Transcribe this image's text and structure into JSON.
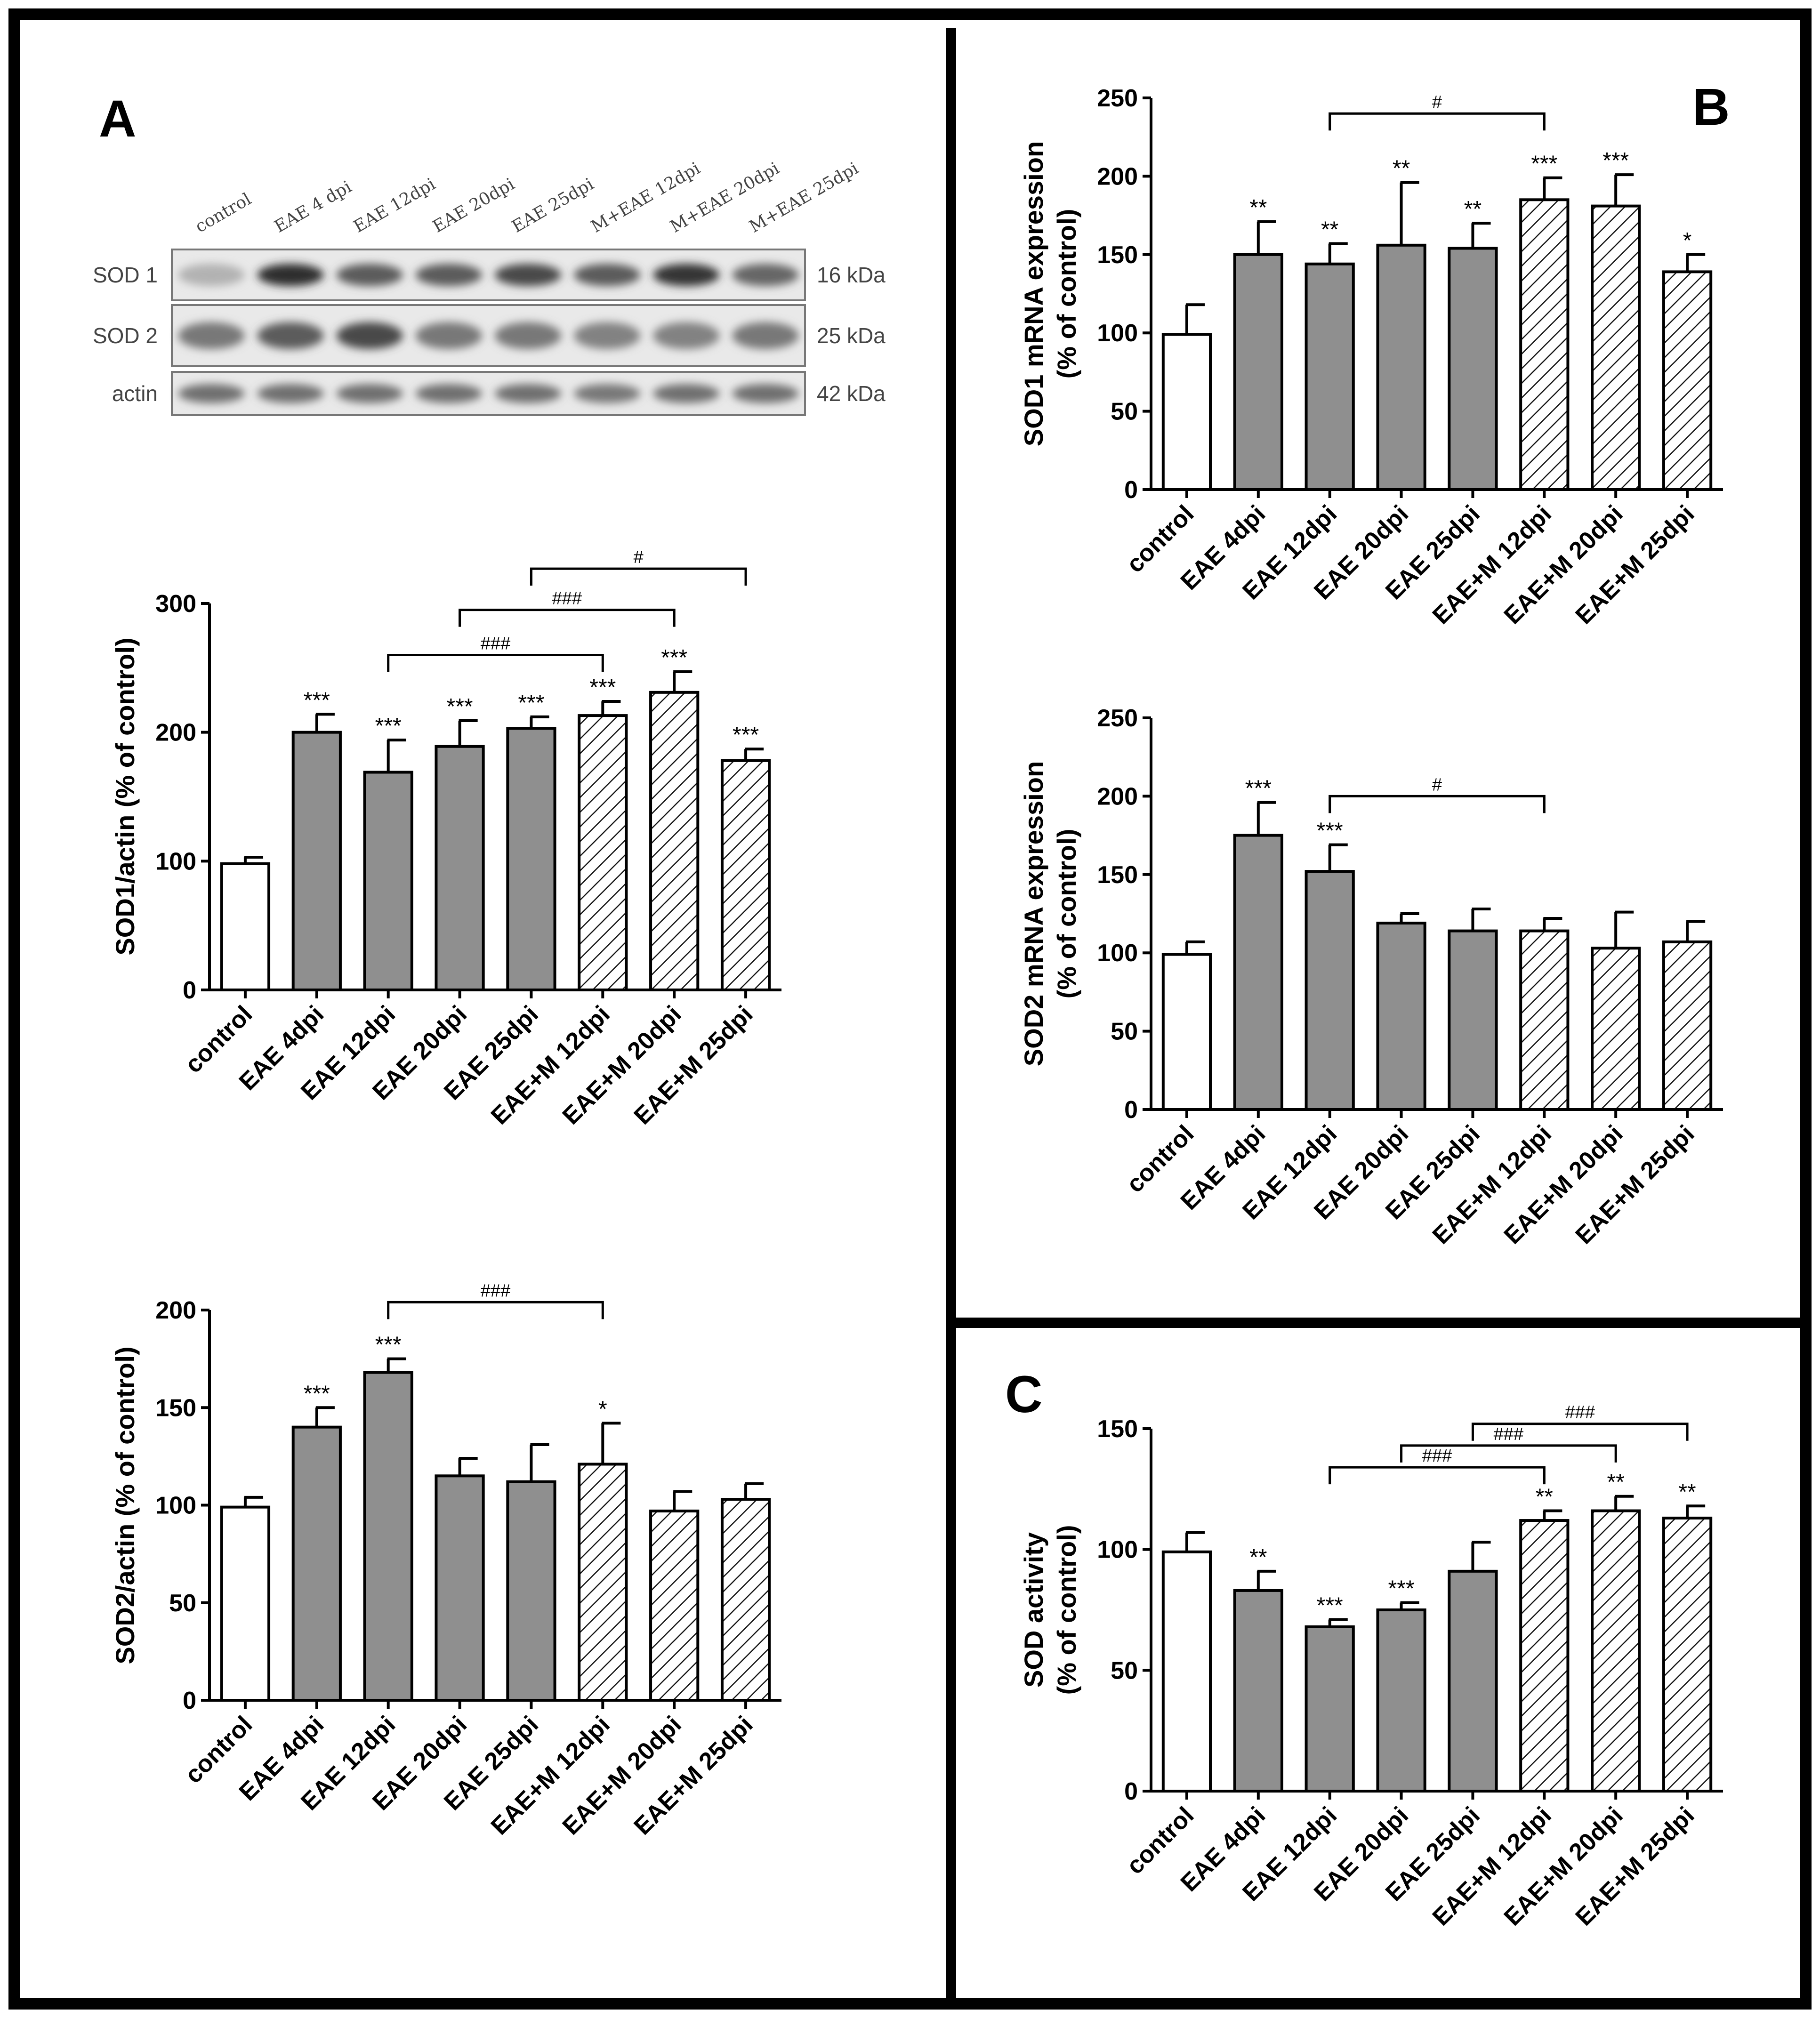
{
  "panels": {
    "A": "A",
    "B": "B",
    "C": "C"
  },
  "blot": {
    "lanes": [
      "control",
      "EAE 4 dpi",
      "EAE 12dpi",
      "EAE 20dpi",
      "EAE 25dpi",
      "M+EAE 12dpi",
      "M+EAE 20dpi",
      "M+EAE 25dpi"
    ],
    "rows": [
      {
        "name": "SOD 1",
        "size": "16 kDa",
        "intensity": [
          0.25,
          0.95,
          0.7,
          0.7,
          0.8,
          0.7,
          0.9,
          0.65
        ]
      },
      {
        "name": "SOD 2",
        "size": "25 kDa",
        "intensity": [
          0.55,
          0.7,
          0.8,
          0.55,
          0.55,
          0.5,
          0.5,
          0.55
        ]
      },
      {
        "name": "actin",
        "size": "42 kDa",
        "intensity": [
          0.6,
          0.6,
          0.6,
          0.6,
          0.6,
          0.55,
          0.6,
          0.6
        ]
      }
    ]
  },
  "chart_data": [
    {
      "id": "A_sod1",
      "type": "bar",
      "ylabel": "SOD1/actin (% of control)",
      "ylim": [
        0,
        300
      ],
      "yticks": [
        0,
        100,
        200,
        300
      ],
      "categories": [
        "control",
        "EAE 4dpi",
        "EAE 12dpi",
        "EAE 20dpi",
        "EAE 25dpi",
        "EAE+M 12dpi",
        "EAE+M 20dpi",
        "EAE+M 25dpi"
      ],
      "values": [
        98,
        200,
        169,
        189,
        203,
        213,
        231,
        178
      ],
      "errors": [
        5,
        14,
        25,
        20,
        9,
        11,
        16,
        9
      ],
      "fills": [
        "white",
        "gray",
        "gray",
        "gray",
        "gray",
        "hatch",
        "hatch",
        "hatch"
      ],
      "stars": [
        "",
        "***",
        "***",
        "***",
        "***",
        "***",
        "***",
        "***"
      ],
      "brackets": [
        {
          "from": 2,
          "to": 5,
          "label": "###",
          "y": 260
        },
        {
          "from": 3,
          "to": 6,
          "label": "###",
          "y": 295
        },
        {
          "from": 4,
          "to": 7,
          "label": "#",
          "y": 327
        }
      ]
    },
    {
      "id": "A_sod2",
      "type": "bar",
      "ylabel": "SOD2/actin (% of control)",
      "ylim": [
        0,
        200
      ],
      "yticks": [
        0,
        50,
        100,
        150,
        200
      ],
      "categories": [
        "control",
        "EAE 4dpi",
        "EAE 12dpi",
        "EAE 20dpi",
        "EAE 25dpi",
        "EAE+M 12dpi",
        "EAE+M 20dpi",
        "EAE+M 25dpi"
      ],
      "values": [
        99,
        140,
        168,
        115,
        112,
        121,
        97,
        103
      ],
      "errors": [
        5,
        10,
        7,
        9,
        19,
        21,
        10,
        8
      ],
      "fills": [
        "white",
        "gray",
        "gray",
        "gray",
        "gray",
        "hatch",
        "hatch",
        "hatch"
      ],
      "stars": [
        "",
        "***",
        "***",
        "",
        "",
        "*",
        "",
        ""
      ],
      "brackets": [
        {
          "from": 2,
          "to": 5,
          "label": "###",
          "y": 204
        }
      ]
    },
    {
      "id": "B_sod1",
      "type": "bar",
      "ylabel": [
        "SOD1 mRNA expression",
        "(% of control)"
      ],
      "ylim": [
        0,
        250
      ],
      "yticks": [
        0,
        50,
        100,
        150,
        200,
        250
      ],
      "categories": [
        "control",
        "EAE 4dpi",
        "EAE 12dpi",
        "EAE 20dpi",
        "EAE 25dpi",
        "EAE+M 12dpi",
        "EAE+M 20dpi",
        "EAE+M 25dpi"
      ],
      "values": [
        99,
        150,
        144,
        156,
        154,
        185,
        181,
        139
      ],
      "errors": [
        19,
        21,
        13,
        40,
        16,
        14,
        20,
        11
      ],
      "fills": [
        "white",
        "gray",
        "gray",
        "gray",
        "gray",
        "hatch",
        "hatch",
        "hatch"
      ],
      "stars": [
        "",
        "**",
        "**",
        "**",
        "**",
        "***",
        "***",
        "*"
      ],
      "brackets": [
        {
          "from": 2,
          "to": 5,
          "label": "#",
          "y": 240
        }
      ]
    },
    {
      "id": "B_sod2",
      "type": "bar",
      "ylabel": [
        "SOD2 mRNA expression",
        "(% of control)"
      ],
      "ylim": [
        0,
        250
      ],
      "yticks": [
        0,
        50,
        100,
        150,
        200,
        250
      ],
      "categories": [
        "control",
        "EAE 4dpi",
        "EAE 12dpi",
        "EAE 20dpi",
        "EAE 25dpi",
        "EAE+M 12dpi",
        "EAE+M 20dpi",
        "EAE+M 25dpi"
      ],
      "values": [
        99,
        175,
        152,
        119,
        114,
        114,
        103,
        107
      ],
      "errors": [
        8,
        21,
        17,
        6,
        14,
        8,
        23,
        13
      ],
      "fills": [
        "white",
        "gray",
        "gray",
        "gray",
        "gray",
        "hatch",
        "hatch",
        "hatch"
      ],
      "stars": [
        "",
        "***",
        "***",
        "",
        "",
        "",
        "",
        ""
      ],
      "brackets": [
        {
          "from": 2,
          "to": 5,
          "label": "#",
          "y": 200
        }
      ]
    },
    {
      "id": "C_sod",
      "type": "bar",
      "ylabel": [
        "SOD activity",
        "(% of control)"
      ],
      "ylim": [
        0,
        150
      ],
      "yticks": [
        0,
        50,
        100,
        150
      ],
      "categories": [
        "control",
        "EAE 4dpi",
        "EAE 12dpi",
        "EAE 20dpi",
        "EAE 25dpi",
        "EAE+M 12dpi",
        "EAE+M 20dpi",
        "EAE+M 25dpi"
      ],
      "values": [
        99,
        83,
        68,
        75,
        91,
        112,
        116,
        113
      ],
      "errors": [
        8,
        8,
        3,
        3,
        12,
        4,
        6,
        5
      ],
      "fills": [
        "white",
        "gray",
        "gray",
        "gray",
        "gray",
        "hatch",
        "hatch",
        "hatch"
      ],
      "stars": [
        "",
        "**",
        "***",
        "***",
        "",
        "**",
        "**",
        "**"
      ],
      "brackets": [
        {
          "from": 2,
          "to": 5,
          "label": "###",
          "y": 134
        },
        {
          "from": 3,
          "to": 6,
          "label": "###",
          "y": 143
        },
        {
          "from": 4,
          "to": 7,
          "label": "###",
          "y": 152
        }
      ]
    }
  ]
}
